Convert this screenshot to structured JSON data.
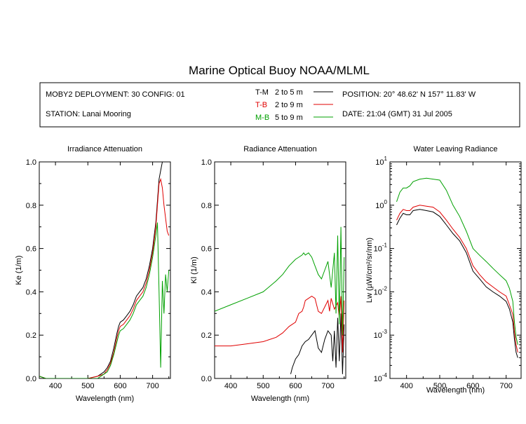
{
  "title": "Marine Optical Buoy NOAA/MLML",
  "info": {
    "deployment": "MOBY2 DEPLOYMENT: 30 CONFIG: 01",
    "station": "STATION: Lanai Mooring",
    "position": "POSITION: 20° 48.62' N   157° 11.83' W",
    "date": "DATE: 21:04 (GMT) 31 Jul 2005"
  },
  "legend": [
    {
      "code": "T-M",
      "range": "2 to 5  m",
      "color": "#000000"
    },
    {
      "code": "T-B",
      "range": "2 to 9  m",
      "color": "#e00000"
    },
    {
      "code": "M-B",
      "range": "5 to 9  m",
      "color": "#00a000"
    }
  ],
  "colors": {
    "T-M": "#000000",
    "T-B": "#e00000",
    "M-B": "#00a000"
  },
  "chart_data": [
    {
      "type": "line",
      "title": "Irradiance Attenuation",
      "xlabel": "Wavelength (nm)",
      "ylabel": "Ke  (1/m)",
      "xlim": [
        350,
        755
      ],
      "ylim": [
        0,
        1.0
      ],
      "xticks": [
        "400",
        "500",
        "600",
        "700"
      ],
      "yticks": [
        "0.0",
        "0.2",
        "0.4",
        "0.6",
        "0.8",
        "1.0"
      ],
      "series": [
        {
          "name": "T-M",
          "x": [
            350,
            370,
            400,
            450,
            500,
            530,
            550,
            560,
            570,
            580,
            590,
            595,
            600,
            610,
            620,
            630,
            640,
            650,
            660,
            670,
            680,
            690,
            700,
            710,
            715,
            720,
            725,
            730,
            740,
            750
          ],
          "y": [
            0.01,
            0,
            0,
            0,
            0,
            0.01,
            0.03,
            0.05,
            0.08,
            0.14,
            0.21,
            0.24,
            0.26,
            0.27,
            0.29,
            0.31,
            0.34,
            0.38,
            0.4,
            0.42,
            0.46,
            0.52,
            0.6,
            0.72,
            0.82,
            0.92,
            0.96,
            1.0,
            1.0,
            1.0
          ]
        },
        {
          "name": "T-B",
          "x": [
            350,
            370,
            400,
            450,
            500,
            530,
            550,
            560,
            570,
            580,
            590,
            595,
            600,
            610,
            620,
            630,
            640,
            650,
            660,
            670,
            680,
            690,
            700,
            710,
            715,
            720,
            725,
            730,
            735,
            740,
            745,
            750
          ],
          "y": [
            0.01,
            0,
            0,
            0,
            0,
            0.01,
            0.02,
            0.04,
            0.07,
            0.12,
            0.19,
            0.22,
            0.24,
            0.25,
            0.27,
            0.29,
            0.32,
            0.36,
            0.38,
            0.4,
            0.44,
            0.5,
            0.58,
            0.7,
            0.8,
            0.9,
            0.92,
            0.88,
            0.8,
            0.74,
            0.68,
            0.66
          ]
        },
        {
          "name": "M-B",
          "x": [
            350,
            370,
            400,
            450,
            500,
            530,
            550,
            560,
            570,
            580,
            590,
            595,
            600,
            610,
            620,
            630,
            640,
            650,
            660,
            670,
            680,
            690,
            700,
            710,
            715,
            720,
            725,
            730,
            735,
            740,
            745,
            750
          ],
          "y": [
            0.01,
            0,
            0,
            0,
            0,
            0,
            0.02,
            0.03,
            0.06,
            0.11,
            0.17,
            0.2,
            0.22,
            0.23,
            0.25,
            0.27,
            0.3,
            0.34,
            0.36,
            0.38,
            0.42,
            0.48,
            0.56,
            0.66,
            0.72,
            0.4,
            0.05,
            0.45,
            0.3,
            0.48,
            0.4,
            0.5
          ]
        }
      ]
    },
    {
      "type": "line",
      "title": "Radiance Attenuation",
      "xlabel": "Wavelength (nm)",
      "ylabel": "Kl  (1/m)",
      "xlim": [
        350,
        755
      ],
      "ylim": [
        0,
        1.0
      ],
      "xticks": [
        "400",
        "500",
        "600",
        "700"
      ],
      "yticks": [
        "0.0",
        "0.2",
        "0.4",
        "0.6",
        "0.8",
        "1.0"
      ],
      "series": [
        {
          "name": "T-M",
          "x": [
            585,
            590,
            600,
            610,
            615,
            620,
            630,
            640,
            650,
            660,
            670,
            680,
            690,
            700,
            710,
            715,
            720,
            725,
            730,
            735,
            740,
            745,
            750
          ],
          "y": [
            0.02,
            0.05,
            0.09,
            0.11,
            0.13,
            0.15,
            0.17,
            0.18,
            0.2,
            0.22,
            0.14,
            0.12,
            0.18,
            0.22,
            0.2,
            0.08,
            0.22,
            0.05,
            0.28,
            0.08,
            0.3,
            0.02,
            0.25
          ]
        },
        {
          "name": "T-B",
          "x": [
            350,
            380,
            400,
            450,
            500,
            540,
            560,
            580,
            600,
            610,
            620,
            625,
            630,
            640,
            650,
            660,
            670,
            680,
            690,
            700,
            705,
            710,
            720,
            730,
            735,
            740,
            745,
            750
          ],
          "y": [
            0.15,
            0.15,
            0.15,
            0.16,
            0.17,
            0.19,
            0.21,
            0.24,
            0.26,
            0.3,
            0.31,
            0.33,
            0.36,
            0.37,
            0.38,
            0.37,
            0.31,
            0.3,
            0.33,
            0.36,
            0.31,
            0.37,
            0.32,
            0.35,
            0.28,
            0.38,
            0.12,
            0.36
          ]
        },
        {
          "name": "M-B",
          "x": [
            350,
            400,
            450,
            500,
            540,
            560,
            580,
            600,
            610,
            620,
            625,
            630,
            640,
            650,
            660,
            670,
            680,
            690,
            700,
            710,
            720,
            725,
            730,
            735,
            740,
            745,
            750
          ],
          "y": [
            0.31,
            0.34,
            0.37,
            0.4,
            0.45,
            0.48,
            0.52,
            0.55,
            0.56,
            0.57,
            0.58,
            0.57,
            0.58,
            0.56,
            0.52,
            0.48,
            0.46,
            0.5,
            0.54,
            0.42,
            0.58,
            0.3,
            0.66,
            0.25,
            0.7,
            0.2,
            0.56
          ]
        }
      ]
    },
    {
      "type": "line",
      "title": "Water Leaving Radiance",
      "xlabel": "Wavelength (nm)",
      "ylabel": "Lw  (µW/cm²/sr/nm)",
      "xlim": [
        350,
        745
      ],
      "ylim": [
        0.0001,
        10
      ],
      "yscale": "log",
      "xticks": [
        "400",
        "500",
        "600",
        "700"
      ],
      "yticks": [
        "10⁻⁴",
        "10⁻³",
        "10⁻²",
        "10⁻¹",
        "10⁰",
        "10¹"
      ],
      "series": [
        {
          "name": "T-M",
          "x": [
            370,
            380,
            390,
            400,
            410,
            420,
            440,
            460,
            480,
            500,
            520,
            540,
            560,
            580,
            600,
            620,
            640,
            660,
            680,
            700,
            710,
            720,
            725,
            730,
            735
          ],
          "y": [
            0.35,
            0.5,
            0.65,
            0.6,
            0.6,
            0.75,
            0.8,
            0.75,
            0.7,
            0.55,
            0.35,
            0.22,
            0.15,
            0.08,
            0.03,
            0.02,
            0.013,
            0.01,
            0.008,
            0.006,
            0.004,
            0.002,
            0.0008,
            0.0004,
            0.0003
          ]
        },
        {
          "name": "T-B",
          "x": [
            370,
            380,
            390,
            400,
            410,
            420,
            440,
            460,
            480,
            500,
            520,
            540,
            560,
            580,
            600,
            620,
            640,
            660,
            680,
            700,
            710,
            720,
            725,
            730,
            735
          ],
          "y": [
            0.45,
            0.65,
            0.8,
            0.75,
            0.75,
            0.9,
            1.0,
            0.95,
            0.9,
            0.7,
            0.45,
            0.28,
            0.18,
            0.1,
            0.04,
            0.025,
            0.017,
            0.013,
            0.01,
            0.008,
            0.005,
            0.003,
            0.0012,
            0.0006,
            0.0004
          ]
        },
        {
          "name": "M-B",
          "x": [
            370,
            380,
            390,
            400,
            410,
            420,
            440,
            460,
            480,
            500,
            520,
            540,
            560,
            580,
            600,
            620,
            640,
            660,
            680,
            700,
            710,
            720,
            725,
            730,
            735
          ],
          "y": [
            1.2,
            2.0,
            2.5,
            2.5,
            2.8,
            3.5,
            4.0,
            4.2,
            4.0,
            3.8,
            2.2,
            1.0,
            0.55,
            0.25,
            0.1,
            0.07,
            0.05,
            0.035,
            0.025,
            0.018,
            0.012,
            0.006,
            0.002,
            0.0009,
            0.0006
          ]
        }
      ]
    }
  ]
}
